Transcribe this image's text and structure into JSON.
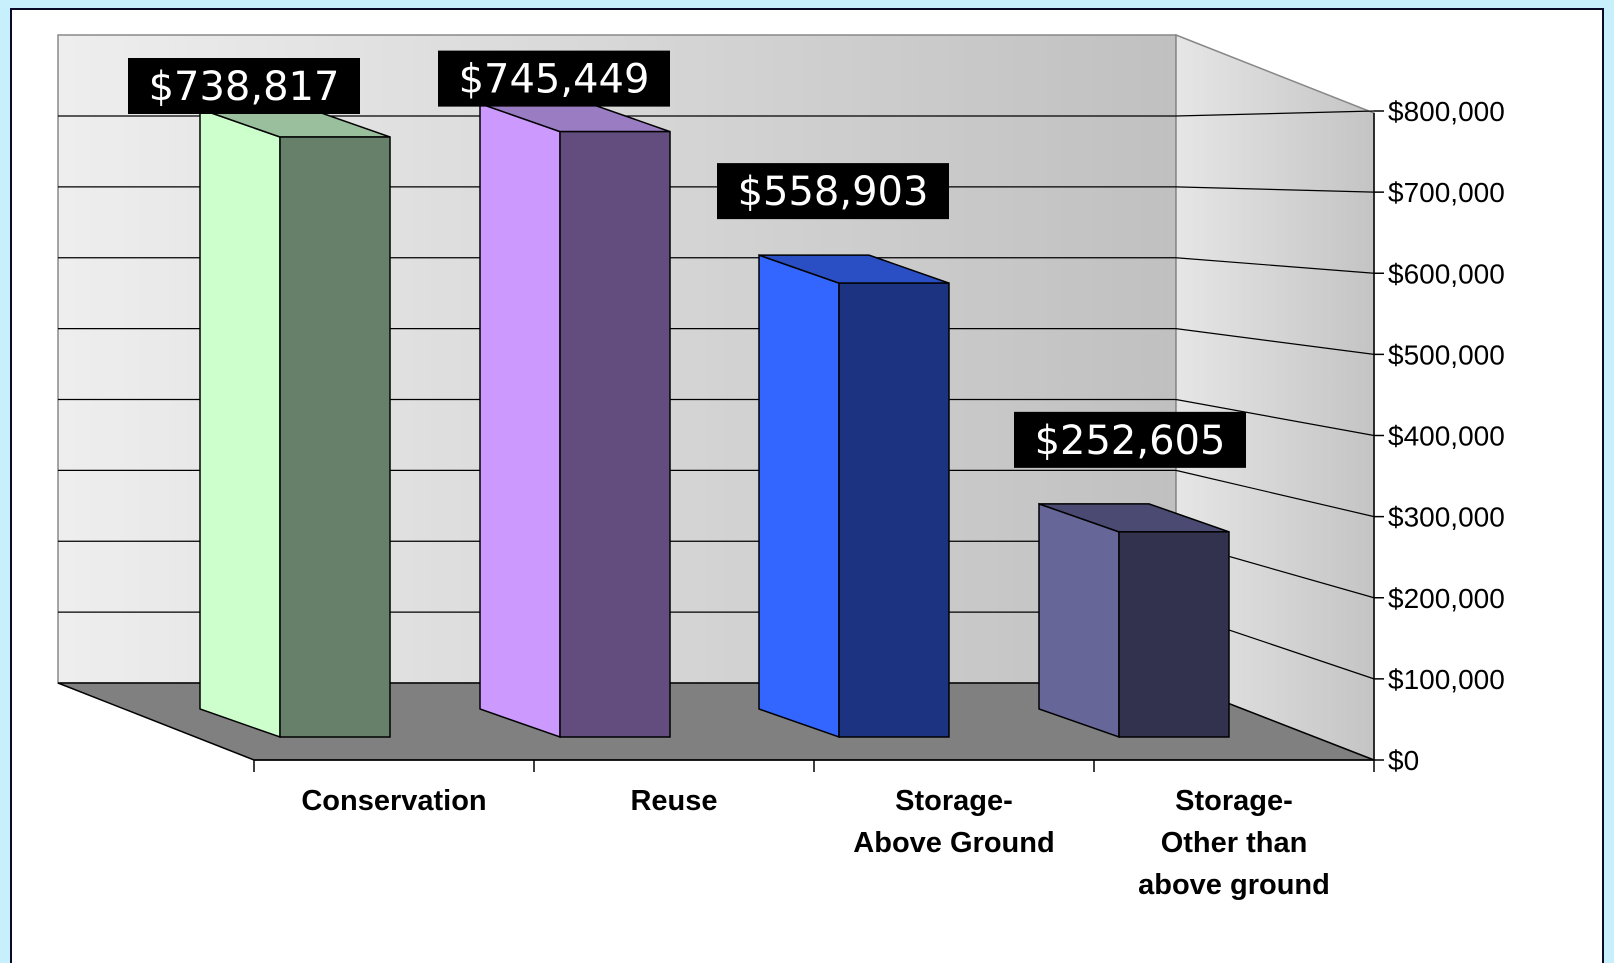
{
  "chart_data": {
    "type": "bar",
    "style": "3d-column",
    "categories": [
      [
        "Conservation"
      ],
      [
        "Reuse"
      ],
      [
        "Storage-",
        "Above Ground"
      ],
      [
        "Storage-",
        "Other than",
        "above ground"
      ]
    ],
    "values": [
      738817,
      745449,
      558903,
      252605
    ],
    "data_labels": [
      "$738,817",
      "$745,449",
      "$558,903",
      "$252,605"
    ],
    "ylim": [
      0,
      800000
    ],
    "yticks": [
      {
        "value": 0,
        "label": "$0"
      },
      {
        "value": 100000,
        "label": "$100,000"
      },
      {
        "value": 200000,
        "label": "$200,000"
      },
      {
        "value": 300000,
        "label": "$300,000"
      },
      {
        "value": 400000,
        "label": "$400,000"
      },
      {
        "value": 500000,
        "label": "$500,000"
      },
      {
        "value": 600000,
        "label": "$600,000"
      },
      {
        "value": 700000,
        "label": "$700,000"
      },
      {
        "value": 800000,
        "label": "$800,000"
      }
    ],
    "y_axis_position": "right",
    "grid": true,
    "legend": "none",
    "colors": [
      {
        "front": "#66806a",
        "side": "#ccffcc",
        "top": "#9abf9d"
      },
      {
        "front": "#634c7e",
        "side": "#cc99ff",
        "top": "#9a7cc2"
      },
      {
        "front": "#1b3380",
        "side": "#3366ff",
        "top": "#2a4fc4"
      },
      {
        "front": "#32324e",
        "side": "#666699",
        "top": "#4a4a73"
      }
    ]
  }
}
